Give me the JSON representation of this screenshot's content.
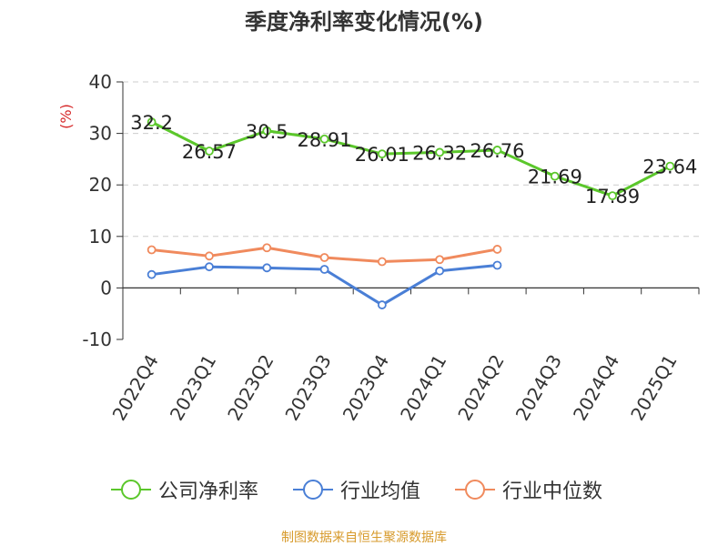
{
  "title": "季度净利率变化情况(%)",
  "footer": "制图数据来自恒生聚源数据库",
  "chart_data": {
    "type": "line",
    "title": "季度净利率变化情况(%)",
    "ylabel": "(%)",
    "ylim": [
      -10,
      40
    ],
    "yticks": [
      -10,
      0,
      10,
      20,
      30,
      40
    ],
    "ytick_labels": [
      "-10",
      "0",
      "10",
      "20",
      "30",
      "40"
    ],
    "categories": [
      "2022Q4",
      "2023Q1",
      "2023Q2",
      "2023Q3",
      "2023Q4",
      "2024Q1",
      "2024Q2",
      "2024Q3",
      "2024Q4",
      "2025Q1"
    ],
    "grid": true,
    "legend_position": "bottom",
    "series": [
      {
        "name": "公司净利率",
        "color": "#5bc72b",
        "show_labels": true,
        "values": [
          32.2,
          26.57,
          30.5,
          28.91,
          26.01,
          26.32,
          26.76,
          21.69,
          17.89,
          23.64
        ],
        "labels": [
          "32.2",
          "26.57",
          "30.5",
          "28.91",
          "26.01",
          "26.32",
          "26.76",
          "21.69",
          "17.89",
          "23.64"
        ]
      },
      {
        "name": "行业均值",
        "color": "#4a7fd6",
        "show_labels": false,
        "values": [
          2.6,
          4.1,
          3.9,
          3.6,
          -3.3,
          3.3,
          4.4,
          null,
          null,
          null
        ]
      },
      {
        "name": "行业中位数",
        "color": "#f08a5d",
        "show_labels": false,
        "values": [
          7.4,
          6.2,
          7.8,
          5.9,
          5.1,
          5.5,
          7.5,
          null,
          null,
          null
        ]
      }
    ]
  }
}
